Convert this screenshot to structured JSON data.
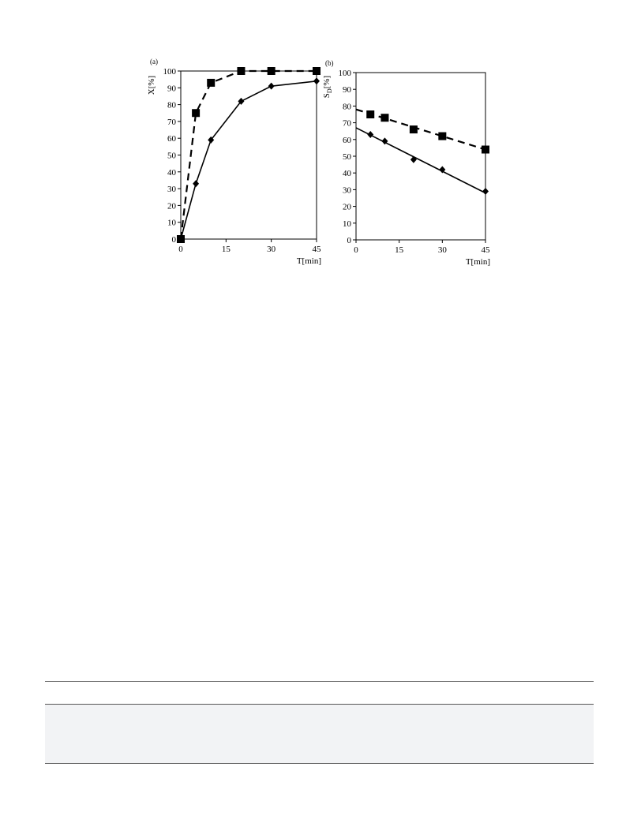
{
  "chart_data": [
    {
      "type": "line",
      "panel_label": "(a)",
      "xlabel": "T[min]",
      "ylabel": "X[%]",
      "xlim": [
        0,
        45
      ],
      "ylim": [
        0,
        100
      ],
      "xticks": [
        0,
        15,
        30,
        45
      ],
      "yticks": [
        0,
        10,
        20,
        30,
        40,
        50,
        60,
        70,
        80,
        90,
        100
      ],
      "grid": false,
      "series": [
        {
          "marker": "square",
          "line": "dashed",
          "points": [
            [
              0,
              0
            ],
            [
              5,
              75
            ],
            [
              10,
              93
            ],
            [
              20,
              100
            ],
            [
              30,
              100
            ],
            [
              45,
              100
            ]
          ]
        },
        {
          "marker": "diamond",
          "line": "solid",
          "points": [
            [
              0,
              0
            ],
            [
              5,
              33
            ],
            [
              10,
              59
            ],
            [
              20,
              82
            ],
            [
              30,
              91
            ],
            [
              45,
              94
            ]
          ]
        }
      ]
    },
    {
      "type": "scatter",
      "panel_label": "(b)",
      "xlabel": "T[min]",
      "ylabel": "S",
      "ylabel_sub": "D",
      "ylabel_suffix": "[%]",
      "xlim": [
        0,
        45
      ],
      "ylim": [
        0,
        100
      ],
      "xticks": [
        0,
        15,
        30,
        45
      ],
      "yticks": [
        0,
        10,
        20,
        30,
        40,
        50,
        60,
        70,
        80,
        90,
        100
      ],
      "grid": false,
      "series": [
        {
          "marker": "square",
          "line": "dashed-fit",
          "points": [
            [
              5,
              75
            ],
            [
              10,
              73
            ],
            [
              20,
              66
            ],
            [
              30,
              62
            ],
            [
              45,
              54
            ]
          ],
          "fit": [
            [
              0,
              78
            ],
            [
              45,
              54
            ]
          ]
        },
        {
          "marker": "diamond",
          "line": "solid-fit",
          "points": [
            [
              5,
              63
            ],
            [
              10,
              59
            ],
            [
              20,
              48
            ],
            [
              30,
              42
            ],
            [
              45,
              29
            ]
          ],
          "fit": [
            [
              0,
              67
            ],
            [
              45,
              28
            ]
          ]
        }
      ]
    }
  ]
}
